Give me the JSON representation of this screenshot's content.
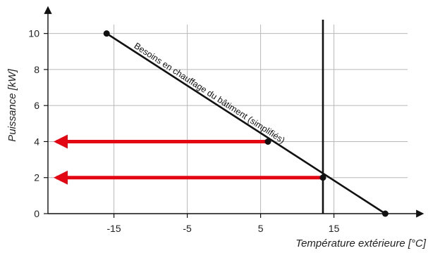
{
  "chart_data": {
    "type": "line",
    "xlabel": "Température extérieure [°C]",
    "ylabel": "Puissance [kW]",
    "xlim": [
      -24,
      26
    ],
    "ylim": [
      0,
      11
    ],
    "grid": true,
    "x_ticks": [
      -15,
      -5,
      5,
      15
    ],
    "y_ticks": [
      0,
      2,
      4,
      6,
      8,
      10
    ],
    "series": [
      {
        "name": "Besoins en chauffage du bâtiment (simplifiés)",
        "x": [
          -16,
          22
        ],
        "y": [
          10,
          0
        ]
      }
    ],
    "markers": [
      {
        "x": -16,
        "y": 10
      },
      {
        "x": 6,
        "y": 4
      },
      {
        "x": 13.5,
        "y": 2
      },
      {
        "x": 22,
        "y": 0
      }
    ],
    "vertical_line": {
      "x": 13.5
    },
    "arrows": [
      {
        "from_x": 6,
        "y": 4
      },
      {
        "from_x": 13.5,
        "y": 2
      }
    ],
    "colors": {
      "line": "#111111",
      "arrow": "#e30613",
      "grid": "#b8b8b8"
    }
  }
}
